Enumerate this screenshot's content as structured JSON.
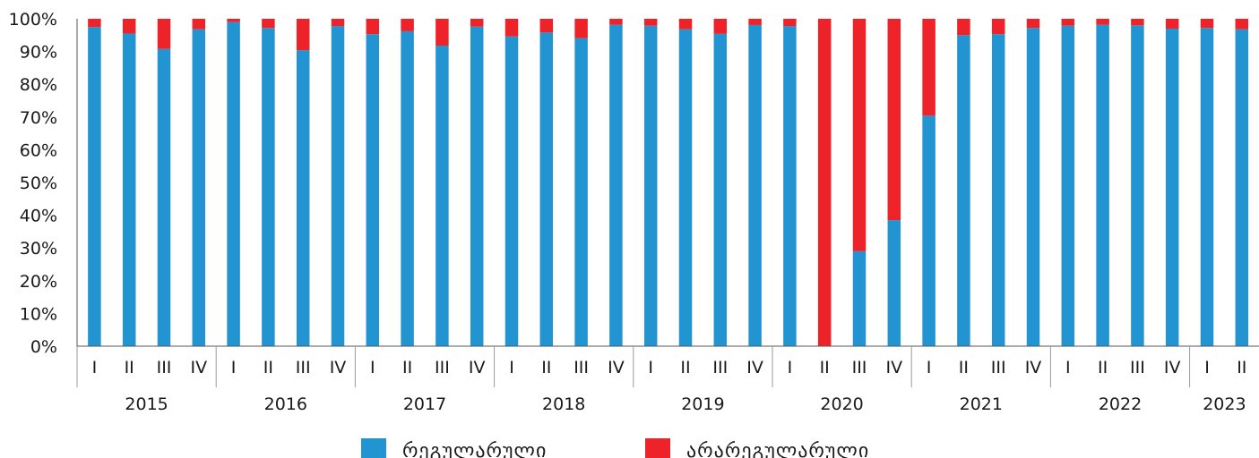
{
  "chart_data": {
    "type": "bar",
    "stacked": true,
    "ylim": [
      0,
      100
    ],
    "y_ticks": [
      "0%",
      "10%",
      "20%",
      "30%",
      "40%",
      "50%",
      "60%",
      "70%",
      "80%",
      "90%",
      "100%"
    ],
    "grid": false,
    "legend_position": "bottom",
    "groups": [
      {
        "year": "2015",
        "quarters": [
          "I",
          "II",
          "III",
          "IV"
        ]
      },
      {
        "year": "2016",
        "quarters": [
          "I",
          "II",
          "III",
          "IV"
        ]
      },
      {
        "year": "2017",
        "quarters": [
          "I",
          "II",
          "III",
          "IV"
        ]
      },
      {
        "year": "2018",
        "quarters": [
          "I",
          "II",
          "III",
          "IV"
        ]
      },
      {
        "year": "2019",
        "quarters": [
          "I",
          "II",
          "III",
          "IV"
        ]
      },
      {
        "year": "2020",
        "quarters": [
          "I",
          "II",
          "III",
          "IV"
        ]
      },
      {
        "year": "2021",
        "quarters": [
          "I",
          "II",
          "III",
          "IV"
        ]
      },
      {
        "year": "2022",
        "quarters": [
          "I",
          "II",
          "III",
          "IV"
        ]
      },
      {
        "year": "2023",
        "quarters": [
          "I",
          "II"
        ]
      }
    ],
    "series": [
      {
        "name": "რეგულარული",
        "color": "#2394d2",
        "values": [
          97.5,
          95.5,
          90.8,
          96.8,
          99.0,
          97.2,
          90.4,
          97.8,
          95.3,
          96.2,
          91.8,
          97.6,
          94.6,
          95.8,
          94.1,
          98.2,
          97.9,
          96.8,
          95.4,
          98.1,
          97.8,
          0,
          29.0,
          38.5,
          70.4,
          95.0,
          95.3,
          97.2,
          97.9,
          98.2,
          98.0,
          97.0,
          97.2,
          96.8
        ]
      },
      {
        "name": "არარეგულარული",
        "color": "#ee2229",
        "values": [
          2.5,
          4.5,
          9.2,
          3.2,
          1.0,
          2.8,
          9.6,
          2.2,
          4.7,
          3.8,
          8.2,
          2.4,
          5.4,
          4.2,
          5.9,
          1.8,
          2.1,
          3.2,
          4.6,
          1.9,
          2.2,
          100,
          71.0,
          61.5,
          29.6,
          5.0,
          4.7,
          2.8,
          2.1,
          1.8,
          2.0,
          3.0,
          2.8,
          3.2
        ]
      }
    ]
  }
}
